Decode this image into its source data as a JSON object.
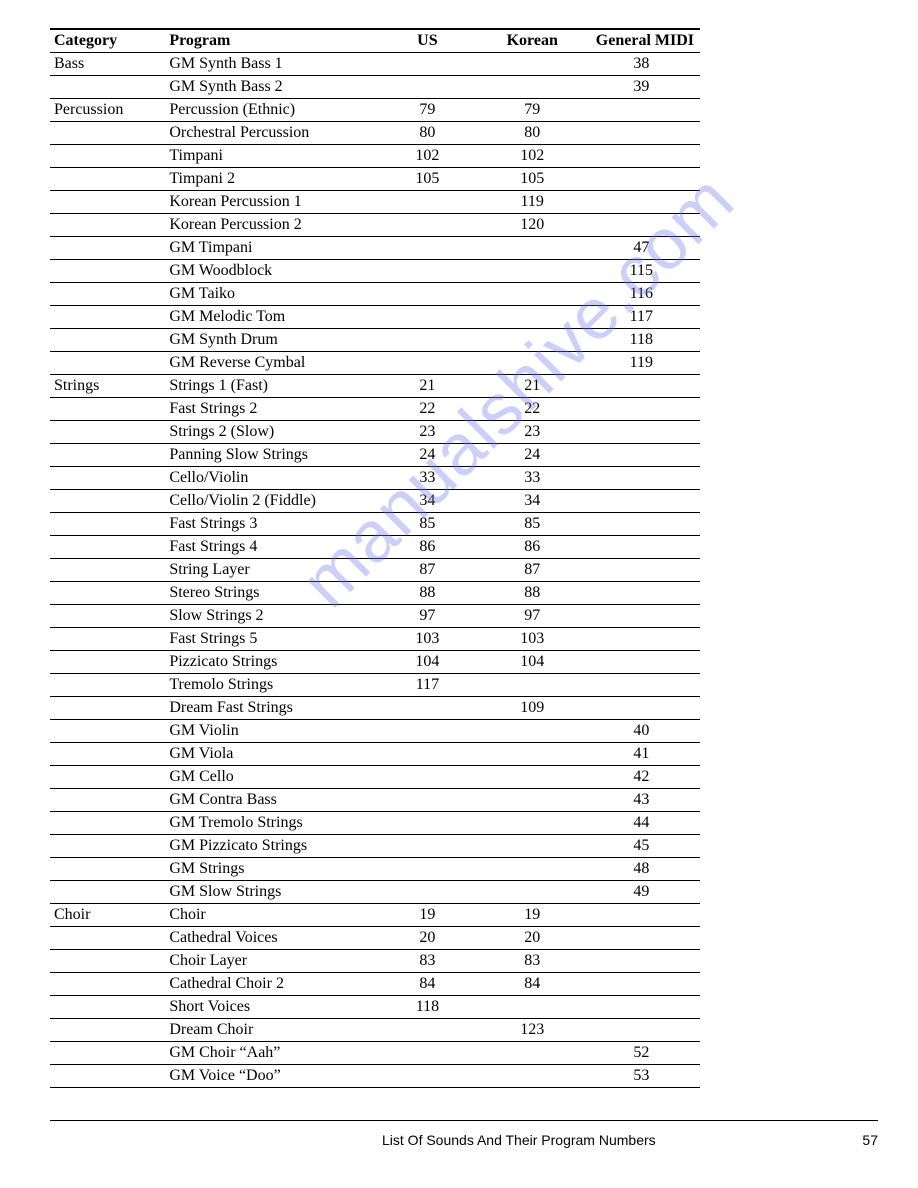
{
  "watermark": "manualshive.com",
  "footer": {
    "title": "List Of Sounds And Their Program Numbers",
    "page": "57"
  },
  "table": {
    "headers": {
      "category": "Category",
      "program": "Program",
      "us": "US",
      "korean": "Korean",
      "gm": "General MIDI"
    },
    "rows": [
      {
        "category": "Bass",
        "program": "GM Synth Bass 1",
        "us": "",
        "korean": "",
        "gm": "38"
      },
      {
        "category": "",
        "program": "GM Synth Bass 2",
        "us": "",
        "korean": "",
        "gm": "39"
      },
      {
        "category": "Percussion",
        "program": "Percussion (Ethnic)",
        "us": "79",
        "korean": "79",
        "gm": ""
      },
      {
        "category": "",
        "program": "Orchestral Percussion",
        "us": "80",
        "korean": "80",
        "gm": ""
      },
      {
        "category": "",
        "program": "Timpani",
        "us": "102",
        "korean": "102",
        "gm": ""
      },
      {
        "category": "",
        "program": "Timpani 2",
        "us": "105",
        "korean": "105",
        "gm": ""
      },
      {
        "category": "",
        "program": "Korean Percussion 1",
        "us": "",
        "korean": "119",
        "gm": ""
      },
      {
        "category": "",
        "program": "Korean Percussion 2",
        "us": "",
        "korean": "120",
        "gm": ""
      },
      {
        "category": "",
        "program": "GM Timpani",
        "us": "",
        "korean": "",
        "gm": "47"
      },
      {
        "category": "",
        "program": "GM Woodblock",
        "us": "",
        "korean": "",
        "gm": "115"
      },
      {
        "category": "",
        "program": "GM Taiko",
        "us": "",
        "korean": "",
        "gm": "116"
      },
      {
        "category": "",
        "program": "GM Melodic Tom",
        "us": "",
        "korean": "",
        "gm": "117"
      },
      {
        "category": "",
        "program": "GM Synth Drum",
        "us": "",
        "korean": "",
        "gm": "118"
      },
      {
        "category": "",
        "program": "GM Reverse Cymbal",
        "us": "",
        "korean": "",
        "gm": "119"
      },
      {
        "category": "Strings",
        "program": "Strings 1 (Fast)",
        "us": "21",
        "korean": "21",
        "gm": ""
      },
      {
        "category": "",
        "program": "Fast Strings 2",
        "us": "22",
        "korean": "22",
        "gm": ""
      },
      {
        "category": "",
        "program": "Strings 2 (Slow)",
        "us": "23",
        "korean": "23",
        "gm": ""
      },
      {
        "category": "",
        "program": "Panning Slow Strings",
        "us": "24",
        "korean": "24",
        "gm": ""
      },
      {
        "category": "",
        "program": "Cello/Violin",
        "us": "33",
        "korean": "33",
        "gm": ""
      },
      {
        "category": "",
        "program": "Cello/Violin 2 (Fiddle)",
        "us": "34",
        "korean": "34",
        "gm": ""
      },
      {
        "category": "",
        "program": "Fast Strings 3",
        "us": "85",
        "korean": "85",
        "gm": ""
      },
      {
        "category": "",
        "program": "Fast Strings 4",
        "us": "86",
        "korean": "86",
        "gm": ""
      },
      {
        "category": "",
        "program": "String Layer",
        "us": "87",
        "korean": "87",
        "gm": ""
      },
      {
        "category": "",
        "program": "Stereo Strings",
        "us": "88",
        "korean": "88",
        "gm": ""
      },
      {
        "category": "",
        "program": "Slow Strings 2",
        "us": "97",
        "korean": "97",
        "gm": ""
      },
      {
        "category": "",
        "program": "Fast Strings 5",
        "us": "103",
        "korean": "103",
        "gm": ""
      },
      {
        "category": "",
        "program": "Pizzicato Strings",
        "us": "104",
        "korean": "104",
        "gm": ""
      },
      {
        "category": "",
        "program": "Tremolo Strings",
        "us": "117",
        "korean": "",
        "gm": ""
      },
      {
        "category": "",
        "program": "Dream Fast Strings",
        "us": "",
        "korean": "109",
        "gm": ""
      },
      {
        "category": "",
        "program": "GM Violin",
        "us": "",
        "korean": "",
        "gm": "40"
      },
      {
        "category": "",
        "program": "GM Viola",
        "us": "",
        "korean": "",
        "gm": "41"
      },
      {
        "category": "",
        "program": "GM Cello",
        "us": "",
        "korean": "",
        "gm": "42"
      },
      {
        "category": "",
        "program": "GM Contra Bass",
        "us": "",
        "korean": "",
        "gm": "43"
      },
      {
        "category": "",
        "program": "GM Tremolo Strings",
        "us": "",
        "korean": "",
        "gm": "44"
      },
      {
        "category": "",
        "program": "GM Pizzicato Strings",
        "us": "",
        "korean": "",
        "gm": "45"
      },
      {
        "category": "",
        "program": "GM Strings",
        "us": "",
        "korean": "",
        "gm": "48"
      },
      {
        "category": "",
        "program": "GM Slow Strings",
        "us": "",
        "korean": "",
        "gm": "49"
      },
      {
        "category": "Choir",
        "program": "Choir",
        "us": "19",
        "korean": "19",
        "gm": ""
      },
      {
        "category": "",
        "program": "Cathedral Voices",
        "us": "20",
        "korean": "20",
        "gm": ""
      },
      {
        "category": "",
        "program": "Choir Layer",
        "us": "83",
        "korean": "83",
        "gm": ""
      },
      {
        "category": "",
        "program": "Cathedral Choir 2",
        "us": "84",
        "korean": "84",
        "gm": ""
      },
      {
        "category": "",
        "program": "Short Voices",
        "us": "118",
        "korean": "",
        "gm": ""
      },
      {
        "category": "",
        "program": "Dream Choir",
        "us": "",
        "korean": "123",
        "gm": ""
      },
      {
        "category": "",
        "program": "GM Choir “Aah”",
        "us": "",
        "korean": "",
        "gm": "52"
      },
      {
        "category": "",
        "program": "GM Voice “Doo”",
        "us": "",
        "korean": "",
        "gm": "53"
      }
    ]
  }
}
